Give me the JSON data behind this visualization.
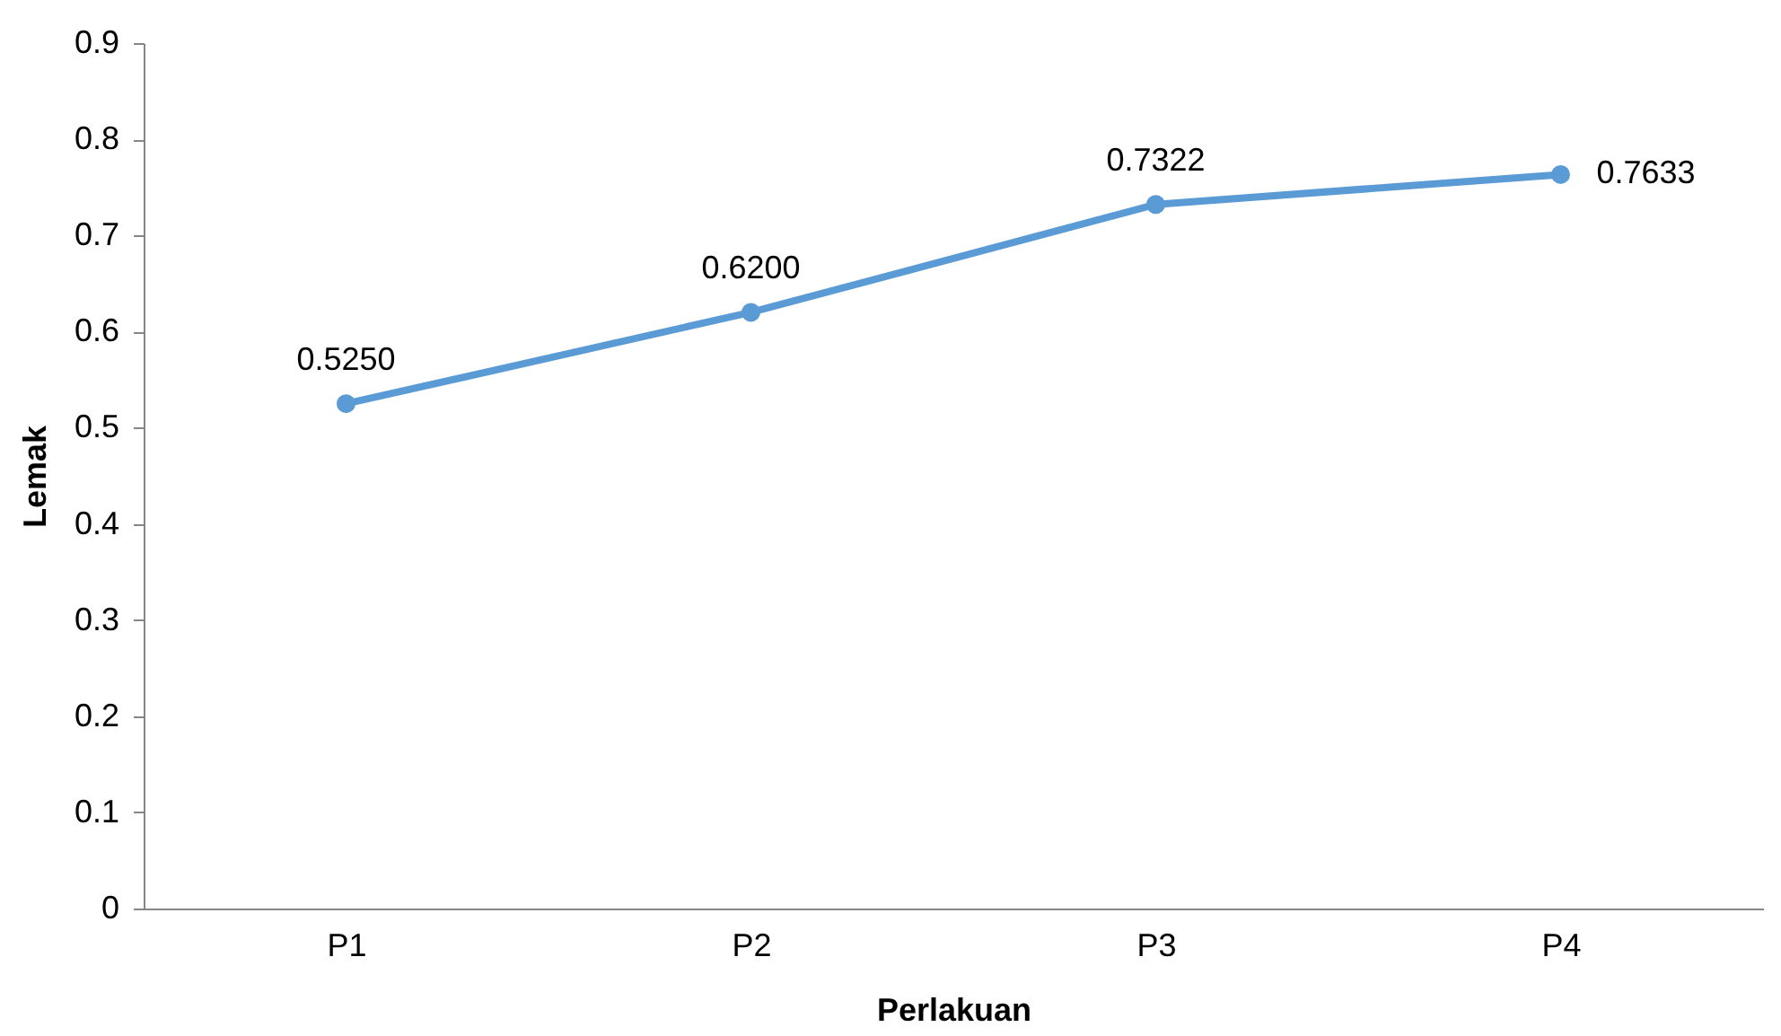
{
  "chart_data": {
    "type": "line",
    "xlabel": "Perlakuan",
    "ylabel": "Lemak",
    "categories": [
      "P1",
      "P2",
      "P3",
      "P4"
    ],
    "series": [
      {
        "color": "#5b9bd5",
        "values": [
          0.525,
          0.62,
          0.7322,
          0.7633
        ],
        "value_labels": [
          "0.5250",
          "0.6200",
          "0.7322",
          "0.7633"
        ]
      }
    ],
    "ylim": [
      0,
      0.9
    ],
    "yticks": [
      0,
      0.1,
      0.2,
      0.3,
      0.4,
      0.5,
      0.6,
      0.7,
      0.8,
      0.9
    ],
    "marker": "circle",
    "line_style": "solid",
    "grid": false
  }
}
